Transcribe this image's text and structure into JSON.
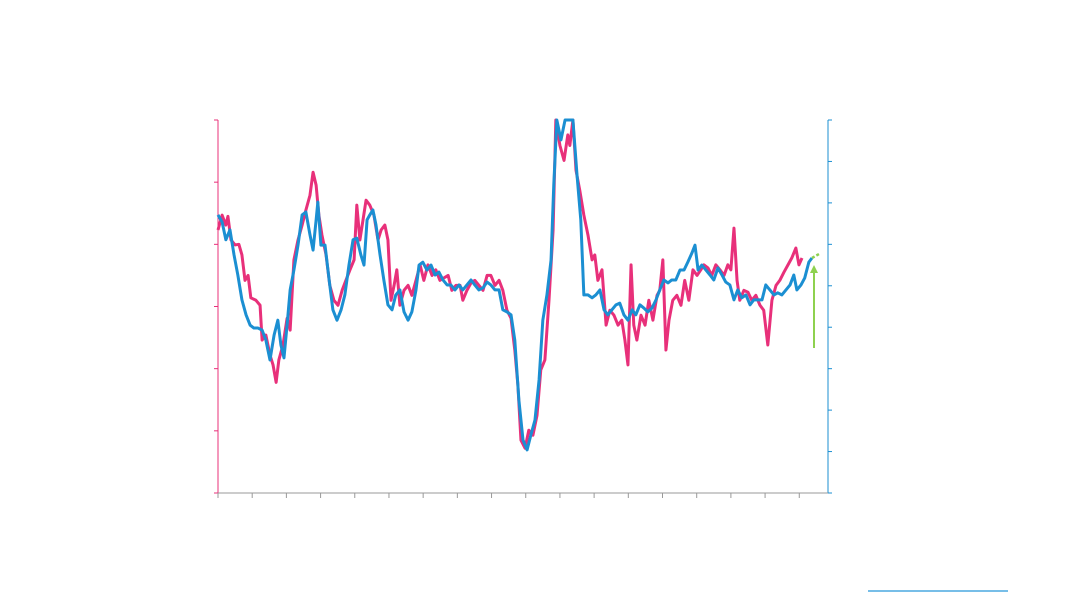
{
  "chart_data": {
    "type": "line",
    "xlim": [
      0,
      17.84
    ],
    "xticks": [
      0,
      1,
      2,
      3,
      4,
      5,
      6,
      7,
      8,
      9,
      10,
      11,
      12,
      13,
      14,
      15,
      16,
      17
    ],
    "ylim": [
      0,
      6
    ],
    "yticks": [
      0,
      1,
      2,
      3,
      4,
      5,
      6
    ],
    "y2lim": [
      0,
      9
    ],
    "y2ticks": [
      0,
      1,
      2,
      3,
      4,
      5,
      6,
      7,
      8,
      9
    ],
    "series": [
      {
        "color": "#e8307a",
        "x": [
          0,
          0.12,
          0.23,
          0.29,
          0.38,
          0.5,
          0.61,
          0.7,
          0.79,
          0.88,
          0.96,
          1.11,
          1.23,
          1.29,
          1.4,
          1.52,
          1.61,
          1.7,
          1.78,
          1.9,
          2.02,
          2.11,
          2.22,
          2.34,
          2.46,
          2.57,
          2.69,
          2.78,
          2.87,
          2.95,
          3.04,
          3.16,
          3.27,
          3.39,
          3.51,
          3.63,
          3.74,
          3.86,
          3.98,
          4.06,
          4.15,
          4.24,
          4.33,
          4.44,
          4.56,
          4.68,
          4.77,
          4.88,
          4.97,
          5.06,
          5.15,
          5.23,
          5.32,
          5.44,
          5.56,
          5.67,
          5.79,
          5.91,
          6.02,
          6.14,
          6.26,
          6.37,
          6.49,
          6.61,
          6.73,
          6.84,
          6.96,
          7.08,
          7.16,
          7.28,
          7.4,
          7.51,
          7.63,
          7.75,
          7.87,
          7.98,
          8.1,
          8.22,
          8.33,
          8.45,
          8.57,
          8.68,
          8.77,
          8.86,
          8.98,
          9.09,
          9.21,
          9.33,
          9.44,
          9.56,
          9.68,
          9.8,
          9.88,
          10,
          10.12,
          10.23,
          10.29,
          10.38,
          10.47,
          10.58,
          10.7,
          10.82,
          10.94,
          11.02,
          11.11,
          11.23,
          11.35,
          11.46,
          11.58,
          11.7,
          11.81,
          11.9,
          11.99,
          12.08,
          12.16,
          12.25,
          12.37,
          12.49,
          12.6,
          12.72,
          12.84,
          12.92,
          13.01,
          13.1,
          13.19,
          13.3,
          13.42,
          13.54,
          13.65,
          13.77,
          13.89,
          14.01,
          14.12,
          14.21,
          14.33,
          14.44,
          14.56,
          14.68,
          14.8,
          14.91,
          15,
          15.09,
          15.18,
          15.26,
          15.38,
          15.5,
          15.61,
          15.73,
          15.85,
          15.96,
          16.08,
          16.2,
          16.32,
          16.43,
          16.55,
          16.67,
          16.78,
          16.9,
          16.99,
          17.08
        ],
        "values": [
          4.23,
          4.47,
          4.31,
          4.45,
          4.07,
          3.99,
          4,
          3.83,
          3.42,
          3.5,
          3.14,
          3.1,
          3.02,
          2.46,
          2.54,
          2.22,
          2.06,
          1.78,
          2.14,
          2.38,
          2.81,
          2.62,
          3.75,
          4.07,
          4.31,
          4.55,
          4.79,
          5.16,
          4.95,
          4.47,
          4.15,
          3.83,
          3.34,
          3.1,
          3.02,
          3.26,
          3.42,
          3.59,
          3.75,
          4.63,
          4.07,
          4.39,
          4.71,
          4.63,
          4.47,
          4.07,
          4.23,
          4.31,
          4.07,
          3.1,
          3.34,
          3.59,
          3.02,
          3.26,
          3.34,
          3.18,
          3.42,
          3.67,
          3.42,
          3.67,
          3.5,
          3.59,
          3.42,
          3.46,
          3.5,
          3.26,
          3.34,
          3.34,
          3.1,
          3.26,
          3.38,
          3.42,
          3.34,
          3.26,
          3.5,
          3.5,
          3.34,
          3.42,
          3.26,
          2.94,
          2.81,
          2.3,
          1.74,
          0.85,
          0.72,
          1.01,
          0.93,
          1.25,
          1.98,
          2.14,
          3.1,
          4.23,
          6,
          5.59,
          5.35,
          5.76,
          5.59,
          6,
          5.19,
          4.87,
          4.47,
          4.15,
          3.75,
          3.83,
          3.42,
          3.59,
          2.7,
          2.94,
          2.86,
          2.7,
          2.78,
          2.46,
          2.06,
          3.67,
          2.7,
          2.46,
          2.86,
          2.7,
          3.1,
          2.78,
          3.18,
          3.26,
          3.75,
          2.3,
          2.78,
          3.1,
          3.18,
          3.02,
          3.42,
          3.1,
          3.59,
          3.5,
          3.59,
          3.67,
          3.62,
          3.5,
          3.67,
          3.59,
          3.5,
          3.67,
          3.59,
          4.26,
          3.42,
          3.1,
          3.26,
          3.23,
          3.1,
          3.18,
          3.02,
          2.94,
          2.38,
          3.1,
          3.34,
          3.42,
          3.55,
          3.67,
          3.78,
          3.94,
          3.67,
          3.78
        ]
      },
      {
        "color": "#1b8fd2",
        "axis": "y2",
        "x": [
          0,
          0.12,
          0.23,
          0.35,
          0.47,
          0.58,
          0.7,
          0.82,
          0.94,
          1.05,
          1.17,
          1.29,
          1.4,
          1.52,
          1.64,
          1.75,
          1.84,
          1.93,
          2.02,
          2.11,
          2.22,
          2.34,
          2.46,
          2.57,
          2.69,
          2.78,
          2.87,
          2.92,
          3.01,
          3.13,
          3.25,
          3.36,
          3.48,
          3.6,
          3.71,
          3.83,
          3.95,
          4.06,
          4.18,
          4.27,
          4.36,
          4.44,
          4.53,
          4.62,
          4.74,
          4.85,
          4.97,
          5.09,
          5.2,
          5.32,
          5.44,
          5.56,
          5.67,
          5.79,
          5.88,
          5.99,
          6.11,
          6.23,
          6.35,
          6.46,
          6.58,
          6.7,
          6.81,
          6.93,
          7.05,
          7.16,
          7.28,
          7.4,
          7.51,
          7.63,
          7.75,
          7.87,
          7.98,
          8.1,
          8.22,
          8.33,
          8.45,
          8.57,
          8.68,
          8.8,
          8.92,
          9.04,
          9.15,
          9.27,
          9.39,
          9.5,
          9.62,
          9.74,
          9.82,
          9.91,
          10.03,
          10.15,
          10.26,
          10.38,
          10.5,
          10.61,
          10.7,
          10.82,
          10.94,
          11.05,
          11.17,
          11.29,
          11.4,
          11.52,
          11.64,
          11.75,
          11.87,
          11.99,
          12.11,
          12.22,
          12.34,
          12.46,
          12.57,
          12.69,
          12.81,
          12.92,
          13.04,
          13.16,
          13.27,
          13.39,
          13.51,
          13.63,
          13.74,
          13.86,
          13.95,
          14.04,
          14.15,
          14.27,
          14.39,
          14.5,
          14.62,
          14.74,
          14.85,
          14.97,
          15.09,
          15.2,
          15.32,
          15.44,
          15.56,
          15.67,
          15.79,
          15.91,
          16.02,
          16.14,
          16.26,
          16.37,
          16.49,
          16.61,
          16.73,
          16.84,
          16.93,
          17.05,
          17.16,
          17.28,
          17.37
        ],
        "values": [
          6.71,
          6.54,
          6.11,
          6.35,
          5.74,
          5.26,
          4.66,
          4.3,
          4.05,
          3.98,
          3.98,
          3.93,
          3.69,
          3.21,
          3.81,
          4.17,
          3.57,
          3.26,
          4.05,
          4.9,
          5.38,
          5.98,
          6.71,
          6.78,
          6.23,
          5.86,
          6.59,
          7.02,
          5.98,
          5.98,
          5.14,
          4.42,
          4.17,
          4.42,
          4.78,
          5.5,
          6.11,
          6.15,
          5.74,
          5.5,
          6.59,
          6.71,
          6.83,
          6.47,
          5.74,
          5.14,
          4.54,
          4.42,
          4.78,
          4.9,
          4.37,
          4.17,
          4.37,
          4.9,
          5.5,
          5.57,
          5.38,
          5.5,
          5.26,
          5.33,
          5.14,
          5.02,
          5.02,
          4.9,
          5.02,
          4.9,
          5.02,
          5.14,
          5.02,
          4.9,
          4.95,
          5.09,
          5.02,
          4.9,
          4.9,
          4.42,
          4.37,
          4.3,
          3.69,
          2.24,
          1.28,
          1.04,
          1.4,
          1.76,
          2.73,
          4.17,
          4.78,
          5.62,
          7.43,
          9,
          8.52,
          9,
          9,
          9,
          7.67,
          6.59,
          4.78,
          4.78,
          4.71,
          4.78,
          4.9,
          4.42,
          4.3,
          4.42,
          4.54,
          4.58,
          4.3,
          4.17,
          4.42,
          4.3,
          4.54,
          4.46,
          4.37,
          4.46,
          4.66,
          4.9,
          5.14,
          5.07,
          5.14,
          5.14,
          5.38,
          5.38,
          5.57,
          5.79,
          5.98,
          5.38,
          5.5,
          5.38,
          5.26,
          5.14,
          5.43,
          5.26,
          5.09,
          5.02,
          4.66,
          4.9,
          4.71,
          4.78,
          4.54,
          4.66,
          4.66,
          4.66,
          5.02,
          4.9,
          4.78,
          4.83,
          4.78,
          4.9,
          5.02,
          5.26,
          4.9,
          5.02,
          5.19,
          5.57,
          5.67
        ]
      }
    ]
  }
}
